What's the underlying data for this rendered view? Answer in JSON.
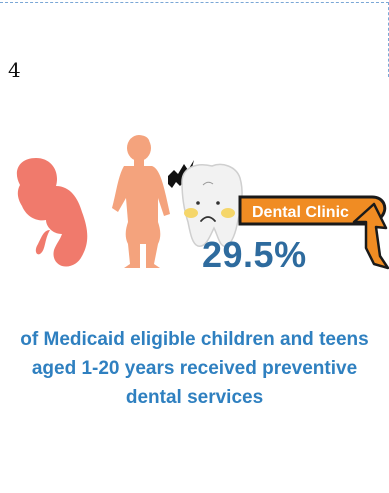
{
  "page": {
    "number": "4"
  },
  "sign": {
    "label": "Dental Clinic"
  },
  "stat": {
    "value": "29.5%",
    "description": "of Medicaid eligible children and teens aged 1-20 years received preventive dental services"
  },
  "colors": {
    "fetus": "#f07a6c",
    "child": "#f4a37d",
    "tooth": "#f2f2f2",
    "sign_fill": "#f08c23",
    "stat_value": "#2e6b9e",
    "stat_text": "#2f80c0"
  },
  "icons": {
    "fetus": "fetus-silhouette-icon",
    "child": "child-silhouette-icon",
    "tooth": "sad-tooth-icon",
    "sign": "dental-clinic-sign-icon",
    "arrow": "curved-arrow-icon"
  }
}
